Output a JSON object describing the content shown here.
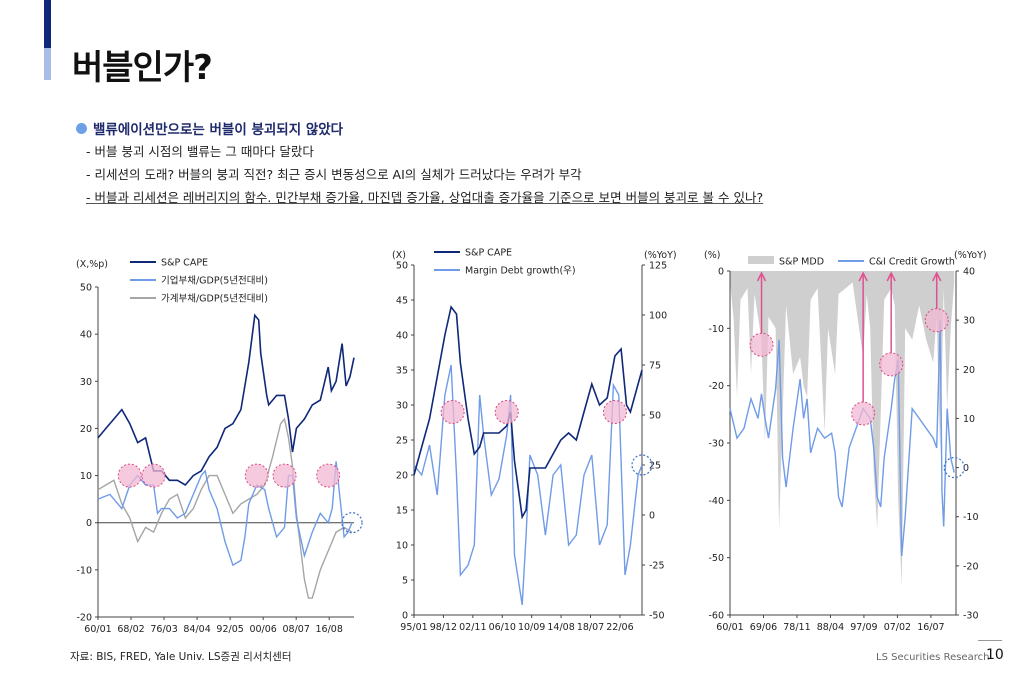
{
  "title": "버블인가?",
  "headline": "밸류에이션만으로는 버블이 붕괴되지 않았다",
  "bullets": [
    "- 버블 붕괴 시점의 밸류는 그 때마다 달랐다",
    "- 리세션의 도래? 버블의 붕괴 직전? 최근 증시 변동성으로 AI의 실체가 드러났다는 우려가 부각",
    "- 버블과 리세션은 레버리지의 함수. 민간부채 증가율, 마진뎁 증가율, 상업대출 증가율을 기준으로 보면 버블의 붕괴로 볼 수 있나?"
  ],
  "source": "자료: BIS, FRED, Yale Univ. LS증권 리서치센터",
  "footer": {
    "brand": "LS Securities  Research",
    "page": "10"
  },
  "colors": {
    "navy": "#0f2878",
    "light_blue": "#6f9be8",
    "gray": "#a5a5a5",
    "pink": "#f2b8d4",
    "mdd_fill": "#cfcfcf",
    "arrow": "#e0508f"
  },
  "chart_data": [
    {
      "type": "line",
      "unit_label": "(X,%p)",
      "ylim": [
        -20,
        50
      ],
      "yticks": [
        -20,
        -10,
        0,
        10,
        20,
        30,
        40,
        50
      ],
      "x_ticks": [
        "60/01",
        "68/02",
        "76/03",
        "84/04",
        "92/05",
        "00/06",
        "08/07",
        "16/08"
      ],
      "x_range": [
        1960,
        2024.5
      ],
      "series": [
        {
          "name": "S&P CAPE",
          "color": "#0f2878",
          "x": [
            1960,
            1962,
            1964,
            1966,
            1968,
            1970,
            1972,
            1974,
            1976,
            1978,
            1980,
            1982,
            1984,
            1986,
            1988,
            1990,
            1992,
            1994,
            1996,
            1998,
            1999.5,
            2000.5,
            2001,
            2002.5,
            2003,
            2005,
            2007,
            2008,
            2009,
            2010,
            2012,
            2014,
            2016,
            2018,
            2018.8,
            2020,
            2021.5,
            2022.5,
            2023.5,
            2024.5
          ],
          "values": [
            18,
            20,
            22,
            24,
            21,
            17,
            18,
            11,
            11,
            9,
            9,
            8,
            10,
            11,
            14,
            16,
            20,
            21,
            24,
            34,
            44,
            43,
            36,
            27,
            25,
            27,
            27,
            22,
            15,
            20,
            22,
            25,
            26,
            33,
            28,
            30,
            38,
            29,
            31,
            35
          ]
        },
        {
          "name": "기업부채/GDP(5년전대비)",
          "color": "#6f9be8",
          "x": [
            1960,
            1963,
            1966,
            1968,
            1970,
            1972,
            1974,
            1975,
            1976,
            1978,
            1980,
            1982,
            1984,
            1986,
            1987,
            1988,
            1990,
            1992,
            1994,
            1996,
            1997,
            1998,
            2000,
            2002,
            2003,
            2005,
            2007,
            2008,
            2009,
            2010,
            2012,
            2014,
            2016,
            2018,
            2019,
            2020,
            2021,
            2022,
            2023,
            2024
          ],
          "values": [
            5,
            6,
            3,
            8,
            10,
            8,
            8,
            2,
            3,
            3,
            1,
            2,
            6,
            10,
            11,
            7,
            3,
            -4,
            -9,
            -8,
            -3,
            4,
            8,
            7,
            3,
            -3,
            -1,
            10,
            10,
            1,
            -7,
            -2,
            2,
            0,
            3,
            13,
            5,
            -3,
            -2,
            0
          ]
        },
        {
          "name": "가계부채/GDP(5년전대비)",
          "color": "#a5a5a5",
          "x": [
            1960,
            1962,
            1964,
            1966,
            1968,
            1970,
            1972,
            1974,
            1976,
            1978,
            1980,
            1982,
            1984,
            1986,
            1988,
            1990,
            1992,
            1994,
            1996,
            1998,
            2000,
            2002,
            2004,
            2006,
            2007,
            2008,
            2009,
            2010,
            2012,
            2013,
            2014,
            2016,
            2018,
            2020,
            2022,
            2024
          ],
          "values": [
            7,
            8,
            9,
            4,
            1,
            -4,
            -1,
            -2,
            2,
            5,
            6,
            1,
            3,
            7,
            10,
            10,
            6,
            2,
            4,
            5,
            6,
            8,
            14,
            21,
            22,
            18,
            12,
            2,
            -12,
            -16,
            -16,
            -10,
            -6,
            -2,
            -1,
            -2
          ]
        }
      ],
      "highlights": [
        "1968 · 10",
        "1974 · 10",
        "2000 · 10",
        "2007 · 10",
        "2018 · 10"
      ],
      "dotted_highlight": "2024 · 0"
    },
    {
      "type": "line",
      "unit_left": "(X)",
      "unit_right": "(%YoY)",
      "ylim_left": [
        0,
        50
      ],
      "yticks_left": [
        0,
        5,
        10,
        15,
        20,
        25,
        30,
        35,
        40,
        45,
        50
      ],
      "ylim_right": [
        -50,
        125
      ],
      "yticks_right": [
        -50,
        -25,
        0,
        25,
        50,
        75,
        100,
        125
      ],
      "x_ticks": [
        "95/01",
        "98/12",
        "02/11",
        "06/10",
        "10/09",
        "14/08",
        "18/07",
        "22/06"
      ],
      "x_range": [
        1995,
        2024.5
      ],
      "series": [
        {
          "name": "S&P CAPE",
          "axis": "left",
          "color": "#0f2878",
          "x": [
            1995,
            1996,
            1997,
            1998,
            1999,
            1999.8,
            2000.5,
            2001,
            2002,
            2002.8,
            2003.5,
            2004,
            2005,
            2006,
            2007,
            2007.5,
            2008,
            2009,
            2009.5,
            2010,
            2011,
            2012,
            2013,
            2014,
            2015,
            2016,
            2017,
            2018,
            2019,
            2020,
            2021,
            2021.8,
            2022.5,
            2023,
            2024,
            2024.5
          ],
          "values": [
            20,
            24,
            28,
            34,
            40,
            44,
            43,
            36,
            28,
            23,
            24,
            26,
            26,
            26,
            27,
            29,
            22,
            14,
            15,
            21,
            21,
            21,
            23,
            25,
            26,
            25,
            29,
            33,
            30,
            31,
            37,
            38,
            30,
            29,
            33,
            35
          ]
        },
        {
          "name": "Margin Debt growth(우)",
          "axis": "right",
          "color": "#6f9be8",
          "x": [
            1995,
            1996,
            1997,
            1998,
            1999,
            1999.8,
            2000.5,
            2001,
            2002,
            2002.8,
            2003.5,
            2004,
            2005,
            2006,
            2007,
            2007.5,
            2008,
            2009,
            2009.5,
            2010,
            2011,
            2012,
            2013,
            2014,
            2015,
            2016,
            2017,
            2018,
            2019,
            2020,
            2020.8,
            2021.5,
            2022.3,
            2023,
            2024,
            2024.5
          ],
          "values": [
            25,
            20,
            35,
            10,
            60,
            75,
            20,
            -30,
            -25,
            -15,
            60,
            40,
            10,
            18,
            40,
            60,
            -20,
            -45,
            -10,
            30,
            20,
            -10,
            20,
            25,
            -15,
            -10,
            20,
            30,
            -15,
            -5,
            65,
            60,
            -30,
            -15,
            20,
            25
          ]
        }
      ],
      "highlights": [
        "2000 · 29",
        "2007 · 29",
        "2021 · 29"
      ],
      "dotted_highlight": "2024.5 · 25"
    },
    {
      "type": "area+line",
      "unit_left": "(%)",
      "unit_right": "(%YoY)",
      "ylim_left": [
        -60,
        0
      ],
      "yticks_left": [
        -60,
        -50,
        -40,
        -30,
        -20,
        -10,
        0
      ],
      "ylim_right": [
        -30,
        40
      ],
      "yticks_right": [
        -30,
        -20,
        -10,
        0,
        10,
        20,
        30,
        40
      ],
      "x_ticks": [
        "60/01",
        "69/06",
        "78/11",
        "88/04",
        "97/09",
        "07/02",
        "16/07"
      ],
      "x_range": [
        1960,
        2024.5
      ],
      "series": [
        {
          "name": "S&P MDD",
          "axis": "left",
          "color": "#cfcfcf",
          "x": [
            1960,
            1961,
            1962,
            1963,
            1965,
            1966,
            1967,
            1969,
            1970,
            1971,
            1973,
            1974,
            1975,
            1976,
            1978,
            1980,
            1981,
            1982,
            1983,
            1985,
            1987,
            1988,
            1990,
            1991,
            1993,
            1995,
            1998,
            1999,
            2000,
            2001,
            2002,
            2003,
            2004,
            2006,
            2007,
            2008,
            2009,
            2010,
            2012,
            2014,
            2016,
            2018,
            2019,
            2020,
            2021,
            2022,
            2023,
            2024
          ],
          "values": [
            -2,
            -8,
            -22,
            -5,
            -3,
            -18,
            -4,
            -12,
            -30,
            -8,
            -10,
            -45,
            -25,
            -6,
            -18,
            -15,
            -20,
            -22,
            -5,
            -3,
            -28,
            -10,
            -18,
            -4,
            -3,
            -2,
            -15,
            -4,
            -10,
            -35,
            -45,
            -25,
            -5,
            -3,
            -6,
            -40,
            -55,
            -10,
            -12,
            -6,
            -12,
            -16,
            -8,
            -32,
            -3,
            -24,
            -10,
            -2
          ]
        },
        {
          "name": "C&I Credit Growth",
          "axis": "right",
          "color": "#6f9be8",
          "x": [
            1960,
            1962,
            1964,
            1966,
            1968,
            1969,
            1970,
            1971,
            1973,
            1974,
            1975,
            1976,
            1978,
            1980,
            1981,
            1982,
            1983,
            1985,
            1987,
            1989,
            1990,
            1991,
            1992,
            1994,
            1996,
            1998,
            2000,
            2001,
            2002,
            2003,
            2004,
            2006,
            2007,
            2008,
            2009,
            2010,
            2012,
            2014,
            2016,
            2018,
            2019,
            2020,
            2020.5,
            2021,
            2022,
            2023,
            2024
          ],
          "values": [
            12,
            6,
            8,
            14,
            10,
            15,
            10,
            6,
            16,
            26,
            2,
            -4,
            8,
            18,
            10,
            14,
            3,
            8,
            6,
            7,
            3,
            -6,
            -8,
            4,
            8,
            12,
            10,
            4,
            -6,
            -8,
            2,
            12,
            18,
            22,
            -18,
            -10,
            12,
            10,
            8,
            6,
            4,
            30,
            -5,
            -12,
            12,
            2,
            -1
          ]
        }
      ],
      "highlights": [
        "1969 · 25",
        "1998 · 11",
        "2006 · 21",
        "2019 · 30"
      ],
      "dotted_highlight": "2024 · 0"
    }
  ],
  "legends": {
    "c1": [
      "S&P CAPE",
      "기업부채/GDP(5년전대비)",
      "가계부채/GDP(5년전대비)"
    ],
    "c2": [
      "S&P CAPE",
      "Margin Debt growth(우)"
    ],
    "c3": [
      "S&P MDD",
      "C&I Credit Growth"
    ]
  }
}
